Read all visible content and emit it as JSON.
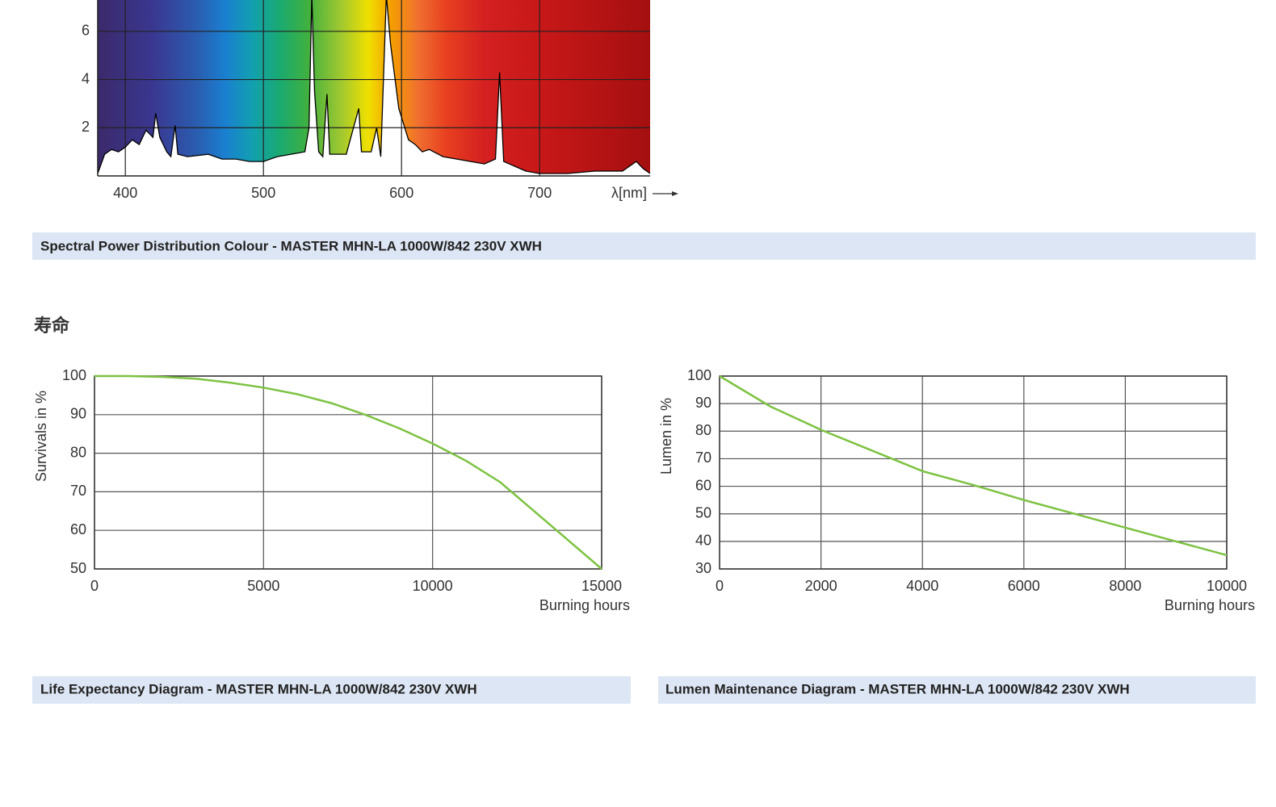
{
  "section_title": "寿命",
  "chart_data": [
    {
      "type": "area",
      "title": "Spectral Power Distribution Colour - MASTER MHN-LA 1000W/842 230V XWH",
      "x_label": "λ[nm]",
      "color": "#000000",
      "grid": true,
      "xlim": [
        380,
        780
      ],
      "xticks": [
        400,
        500,
        600,
        700
      ],
      "ylim": [
        0,
        7.3
      ],
      "yticks": [
        2,
        4,
        6
      ],
      "x": [
        380,
        385,
        390,
        395,
        400,
        405,
        410,
        415,
        420,
        422,
        425,
        430,
        433,
        436,
        438,
        445,
        460,
        470,
        480,
        490,
        500,
        510,
        520,
        530,
        533,
        535,
        537,
        540,
        543,
        546,
        548,
        560,
        569,
        571,
        578,
        582,
        585,
        589,
        592,
        598,
        605,
        610,
        615,
        620,
        630,
        640,
        650,
        660,
        668,
        671,
        674,
        690,
        700,
        720,
        740,
        760,
        770,
        775,
        780
      ],
      "values": [
        0.1,
        0.9,
        1.1,
        1.0,
        1.2,
        1.5,
        1.3,
        1.9,
        1.6,
        2.6,
        1.6,
        1.0,
        0.8,
        2.1,
        0.9,
        0.8,
        0.9,
        0.7,
        0.7,
        0.6,
        0.6,
        0.8,
        0.9,
        1.0,
        2.0,
        7.5,
        3.5,
        1.0,
        0.8,
        3.4,
        0.9,
        0.9,
        2.8,
        1.0,
        1.0,
        2.0,
        0.8,
        7.5,
        5.5,
        2.8,
        1.5,
        1.3,
        1.0,
        1.1,
        0.8,
        0.7,
        0.6,
        0.5,
        0.7,
        4.3,
        0.6,
        0.2,
        0.1,
        0.1,
        0.2,
        0.2,
        0.6,
        0.3,
        0.1
      ]
    },
    {
      "type": "line",
      "title": "Life Expectancy Diagram - MASTER MHN-LA 1000W/842 230V XWH",
      "x_label": "Burning hours",
      "y_label": "Survivals in %",
      "color": "#7dc242",
      "grid": true,
      "xlim": [
        0,
        15000
      ],
      "xticks": [
        0,
        5000,
        10000,
        15000
      ],
      "ylim": [
        50,
        100
      ],
      "yticks": [
        50,
        60,
        70,
        80,
        90,
        100
      ],
      "x": [
        0,
        1000,
        2000,
        3000,
        4000,
        5000,
        6000,
        7000,
        8000,
        9000,
        10000,
        11000,
        12000,
        13000,
        14000,
        15000
      ],
      "values": [
        100,
        100,
        99.8,
        99.3,
        98.3,
        97,
        95.3,
        93,
        90,
        86.5,
        82.5,
        78,
        72.5,
        65,
        57.5,
        50
      ]
    },
    {
      "type": "line",
      "title": "Lumen Maintenance Diagram - MASTER MHN-LA 1000W/842 230V XWH",
      "x_label": "Burning hours",
      "y_label": "Lumen in %",
      "color": "#7dc242",
      "grid": true,
      "xlim": [
        0,
        10000
      ],
      "xticks": [
        0,
        2000,
        4000,
        6000,
        8000,
        10000
      ],
      "ylim": [
        30,
        100
      ],
      "yticks": [
        30,
        40,
        50,
        60,
        70,
        80,
        90,
        100
      ],
      "x": [
        0,
        1000,
        2000,
        3000,
        4000,
        5000,
        6000,
        7000,
        8000,
        9000,
        10000
      ],
      "values": [
        100,
        89,
        80.5,
        73,
        65.5,
        60.5,
        55,
        50,
        45,
        40,
        35
      ]
    }
  ]
}
